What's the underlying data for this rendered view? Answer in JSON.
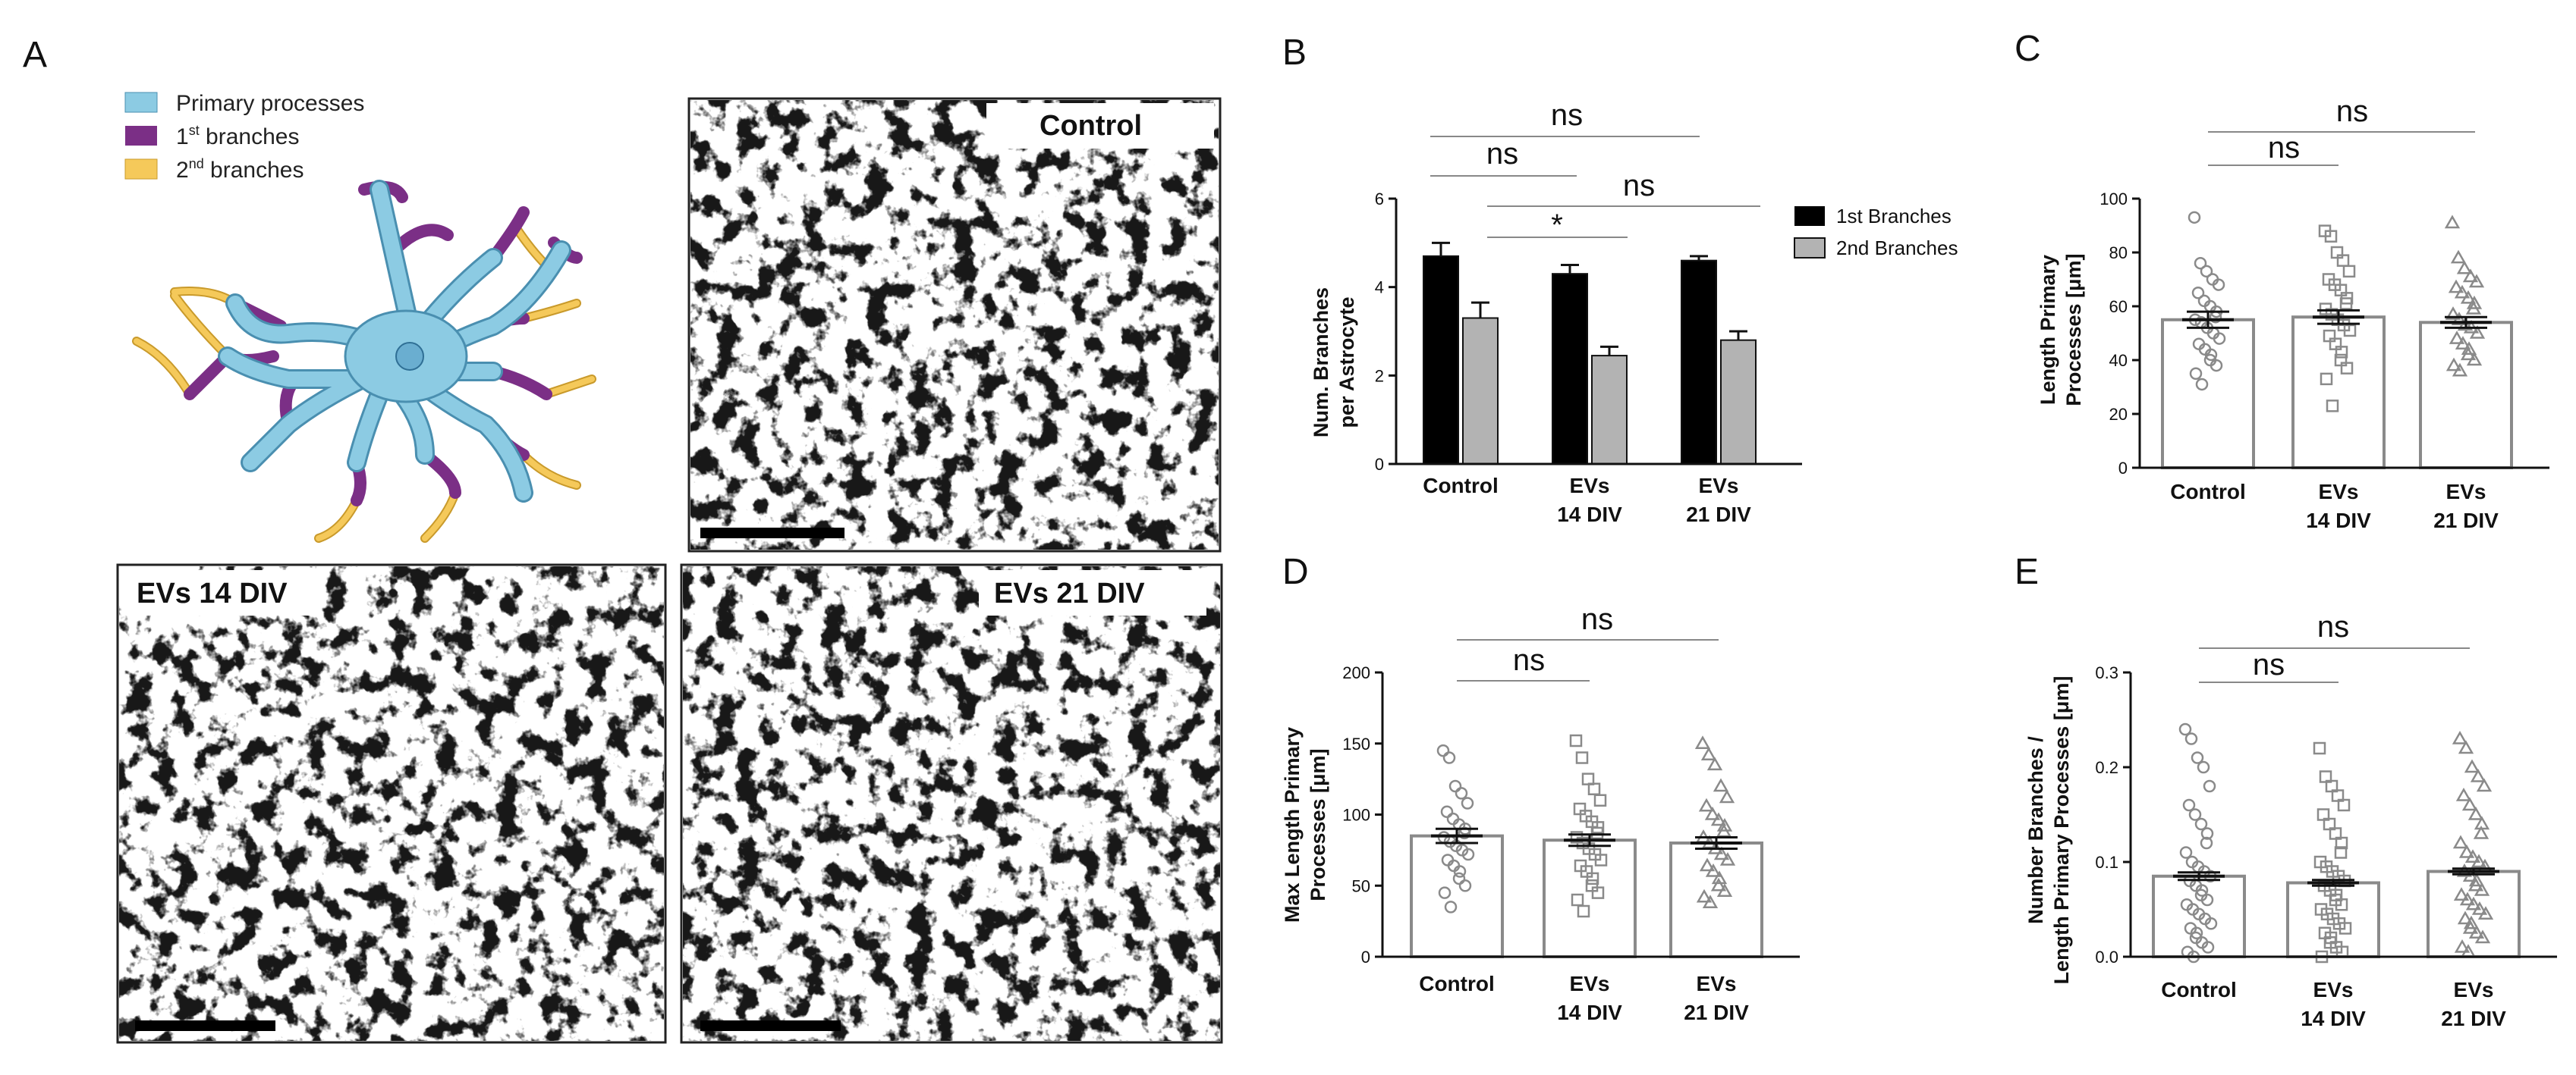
{
  "panels": {
    "a": "A",
    "b": "B",
    "c": "C",
    "d": "D",
    "e": "E"
  },
  "schematic_legend": {
    "primary": "Primary processes",
    "first_main": "1",
    "first_sup": "st",
    "first_tail": "  branches",
    "second_main": "2",
    "second_sup": "nd",
    "second_tail": " branches",
    "colors": {
      "primary": "#8ccbe3",
      "first": "#7b2f86",
      "second": "#f5c95a"
    }
  },
  "micrographs": {
    "control": "Control",
    "evs14": "EVs 14 DIV",
    "evs21": "EVs 21 DIV"
  },
  "categories": {
    "c1": "Control",
    "c2a": "EVs",
    "c2b": "14 DIV",
    "c3a": "EVs",
    "c3b": "21 DIV"
  },
  "axes": {
    "b_y1": "Num. Branches",
    "b_y2": "per Astrocyte",
    "c_y1": "Length Primary",
    "c_y2": "Processes [μm]",
    "d_y1": "Max Length Primary",
    "d_y2": "Processes [μm]",
    "e_y1": "Number Branches /",
    "e_y2": "Length Primary Processes [μm]"
  },
  "sig": {
    "b_ns1": "ns",
    "b_ns2": "ns",
    "b_ns3": "ns",
    "b_star": "*",
    "c_ns1": "ns",
    "c_ns2": "ns",
    "d_ns1": "ns",
    "d_ns2": "ns",
    "e_ns1": "ns",
    "e_ns2": "ns"
  },
  "legend_b": {
    "first": "1st Branches",
    "second": "2nd Branches"
  },
  "chart_data": [
    {
      "panel": "B",
      "type": "bar",
      "categories": [
        "Control",
        "EVs 14 DIV",
        "EVs 21 DIV"
      ],
      "series": [
        {
          "name": "1st Branches",
          "values": [
            4.7,
            4.3,
            4.6
          ],
          "errors": [
            0.3,
            0.2,
            0.1
          ],
          "color": "#000000"
        },
        {
          "name": "2nd Branches",
          "values": [
            3.3,
            2.45,
            2.8
          ],
          "errors": [
            0.35,
            0.2,
            0.2
          ],
          "color": "#b3b3b3"
        }
      ],
      "ylabel": "Num. Branches per Astrocyte",
      "ylim": [
        0,
        6
      ],
      "yticks": [
        0,
        2,
        4,
        6
      ]
    },
    {
      "panel": "C",
      "type": "bar",
      "categories": [
        "Control",
        "EVs 14 DIV",
        "EVs 21 DIV"
      ],
      "values": [
        55,
        56,
        54
      ],
      "errors": [
        3,
        2.5,
        2
      ],
      "ylabel": "Length Primary Processes [μm]",
      "ylim": [
        0,
        100
      ],
      "yticks": [
        0,
        20,
        40,
        60,
        80,
        100
      ],
      "points": [
        [
          93,
          76,
          73,
          70,
          68,
          65,
          62,
          60,
          58,
          56,
          55,
          54,
          52,
          50,
          48,
          46,
          44,
          42,
          40,
          38,
          35,
          31
        ],
        [
          88,
          86,
          80,
          77,
          73,
          70,
          68,
          66,
          63,
          61,
          59,
          57,
          55,
          53,
          51,
          49,
          46,
          43,
          40,
          37,
          33,
          23
        ],
        [
          91,
          78,
          74,
          71,
          69,
          67,
          65,
          63,
          61,
          59,
          57,
          55,
          53,
          52,
          50,
          48,
          46,
          44,
          42,
          40,
          38,
          36
        ]
      ]
    },
    {
      "panel": "D",
      "type": "bar",
      "categories": [
        "Control",
        "EVs 14 DIV",
        "EVs 21 DIV"
      ],
      "values": [
        85,
        82,
        80
      ],
      "errors": [
        5,
        4,
        4
      ],
      "ylabel": "Max Length Primary Processes [μm]",
      "ylim": [
        0,
        200
      ],
      "yticks": [
        0,
        50,
        100,
        150,
        200
      ],
      "points": [
        [
          145,
          140,
          120,
          115,
          108,
          102,
          97,
          93,
          90,
          87,
          84,
          81,
          78,
          75,
          72,
          68,
          64,
          60,
          55,
          50,
          45,
          35
        ],
        [
          152,
          140,
          125,
          118,
          110,
          104,
          99,
          95,
          91,
          87,
          84,
          80,
          76,
          72,
          68,
          64,
          60,
          55,
          50,
          45,
          40,
          32
        ],
        [
          150,
          142,
          135,
          120,
          112,
          106,
          100,
          96,
          92,
          88,
          84,
          80,
          76,
          72,
          68,
          64,
          60,
          55,
          50,
          46,
          42,
          38
        ]
      ]
    },
    {
      "panel": "E",
      "type": "bar",
      "categories": [
        "Control",
        "EVs 14 DIV",
        "EVs 21 DIV"
      ],
      "values": [
        0.085,
        0.078,
        0.09
      ],
      "errors": [
        0.004,
        0.003,
        0.003
      ],
      "ylabel": "Number Branches / Length Primary Processes [μm]",
      "ylim": [
        0,
        0.3
      ],
      "yticks": [
        0.0,
        0.1,
        0.2,
        0.3
      ],
      "points": [
        [
          0.24,
          0.23,
          0.21,
          0.2,
          0.18,
          0.16,
          0.15,
          0.14,
          0.13,
          0.12,
          0.11,
          0.1,
          0.095,
          0.09,
          0.085,
          0.08,
          0.075,
          0.07,
          0.065,
          0.06,
          0.055,
          0.05,
          0.045,
          0.04,
          0.035,
          0.03,
          0.025,
          0.02,
          0.015,
          0.01,
          0.005,
          0.0
        ],
        [
          0.22,
          0.19,
          0.18,
          0.17,
          0.16,
          0.15,
          0.14,
          0.13,
          0.12,
          0.11,
          0.1,
          0.095,
          0.09,
          0.085,
          0.08,
          0.075,
          0.07,
          0.065,
          0.06,
          0.055,
          0.05,
          0.045,
          0.04,
          0.035,
          0.03,
          0.025,
          0.02,
          0.015,
          0.01,
          0.005,
          0.0
        ],
        [
          0.23,
          0.22,
          0.2,
          0.19,
          0.18,
          0.17,
          0.16,
          0.15,
          0.14,
          0.13,
          0.12,
          0.11,
          0.105,
          0.1,
          0.095,
          0.09,
          0.085,
          0.08,
          0.075,
          0.07,
          0.065,
          0.06,
          0.055,
          0.05,
          0.045,
          0.04,
          0.035,
          0.03,
          0.025,
          0.02,
          0.01,
          0.005
        ]
      ]
    }
  ]
}
